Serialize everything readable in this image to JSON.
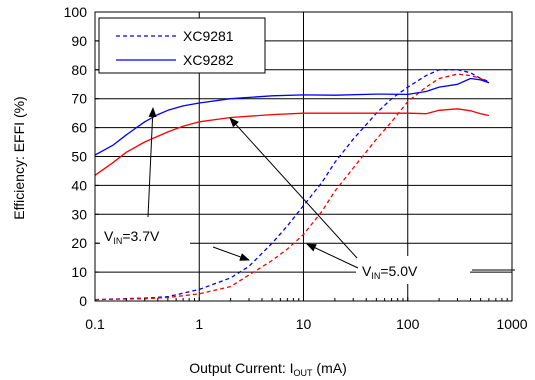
{
  "chart_data": {
    "type": "line",
    "xlabel": "Output Current: I",
    "xlabel_sub": "OUT",
    "xlabel_unit": " (mA)",
    "ylabel": "Efficiency: EFFI (%)",
    "x_scale": "log",
    "xlim": [
      0.1,
      1000
    ],
    "ylim": [
      0,
      100
    ],
    "x_ticks": [
      0.1,
      1,
      10,
      100,
      1000
    ],
    "x_tick_labels": [
      "0.1",
      "1",
      "10",
      "100",
      "1000"
    ],
    "y_ticks": [
      0,
      10,
      20,
      30,
      40,
      50,
      60,
      70,
      80,
      90,
      100
    ],
    "grid": true,
    "legend_position": "top-left",
    "legend": [
      {
        "name": "XC9281",
        "style": "dashed",
        "color": "#0000ff"
      },
      {
        "name": "XC9282",
        "style": "solid",
        "color": "#0000ff"
      }
    ],
    "series": [
      {
        "id": "xc9281_37",
        "style": "dashed",
        "color": "#0000ff",
        "points": [
          [
            0.1,
            0.5
          ],
          [
            0.3,
            1
          ],
          [
            0.5,
            1.5
          ],
          [
            1,
            4
          ],
          [
            2,
            8
          ],
          [
            3,
            12
          ],
          [
            5,
            20
          ],
          [
            7,
            26
          ],
          [
            10,
            33
          ],
          [
            15,
            41
          ],
          [
            20,
            48
          ],
          [
            30,
            56
          ],
          [
            50,
            65
          ],
          [
            70,
            70
          ],
          [
            100,
            74
          ],
          [
            150,
            78
          ],
          [
            200,
            80
          ],
          [
            300,
            80
          ],
          [
            400,
            79
          ],
          [
            500,
            77
          ],
          [
            600,
            76
          ]
        ]
      },
      {
        "id": "xc9281_50",
        "style": "dashed",
        "color": "#ff0000",
        "points": [
          [
            0.1,
            0.5
          ],
          [
            0.3,
            0.8
          ],
          [
            0.5,
            1.2
          ],
          [
            1,
            2.5
          ],
          [
            2,
            5
          ],
          [
            3,
            9
          ],
          [
            5,
            14
          ],
          [
            7,
            18
          ],
          [
            10,
            23
          ],
          [
            15,
            31
          ],
          [
            20,
            38
          ],
          [
            30,
            46
          ],
          [
            50,
            56
          ],
          [
            70,
            62
          ],
          [
            100,
            69
          ],
          [
            150,
            74
          ],
          [
            200,
            77
          ],
          [
            300,
            78.5
          ],
          [
            400,
            78
          ],
          [
            500,
            77
          ],
          [
            600,
            75.5
          ]
        ]
      },
      {
        "id": "xc9282_37",
        "style": "solid",
        "color": "#0000ff",
        "points": [
          [
            0.1,
            50.5
          ],
          [
            0.15,
            54
          ],
          [
            0.2,
            57.5
          ],
          [
            0.3,
            62
          ],
          [
            0.4,
            64.5
          ],
          [
            0.5,
            66
          ],
          [
            0.7,
            67.5
          ],
          [
            1,
            68.5
          ],
          [
            2,
            70
          ],
          [
            5,
            71
          ],
          [
            10,
            71.3
          ],
          [
            20,
            71.2
          ],
          [
            50,
            71.6
          ],
          [
            100,
            71.5
          ],
          [
            150,
            72.5
          ],
          [
            200,
            74
          ],
          [
            300,
            75
          ],
          [
            400,
            77
          ],
          [
            500,
            76.5
          ],
          [
            600,
            75.5
          ]
        ]
      },
      {
        "id": "xc9282_50",
        "style": "solid",
        "color": "#ff0000",
        "points": [
          [
            0.1,
            43.5
          ],
          [
            0.15,
            48
          ],
          [
            0.2,
            51.5
          ],
          [
            0.3,
            55
          ],
          [
            0.5,
            58.5
          ],
          [
            0.7,
            60.5
          ],
          [
            1,
            62
          ],
          [
            2,
            63.5
          ],
          [
            5,
            64.5
          ],
          [
            10,
            65
          ],
          [
            20,
            65
          ],
          [
            50,
            65
          ],
          [
            100,
            65
          ],
          [
            150,
            64.8
          ],
          [
            200,
            66
          ],
          [
            300,
            66.5
          ],
          [
            400,
            65.8
          ],
          [
            500,
            64.8
          ],
          [
            600,
            64.2
          ]
        ]
      }
    ],
    "annotations": [
      {
        "id": "vin37",
        "text": "V",
        "sub": "IN",
        "value": "=3.7V"
      },
      {
        "id": "vin50",
        "text": "V",
        "sub": "IN",
        "value": "=5.0V"
      }
    ]
  }
}
